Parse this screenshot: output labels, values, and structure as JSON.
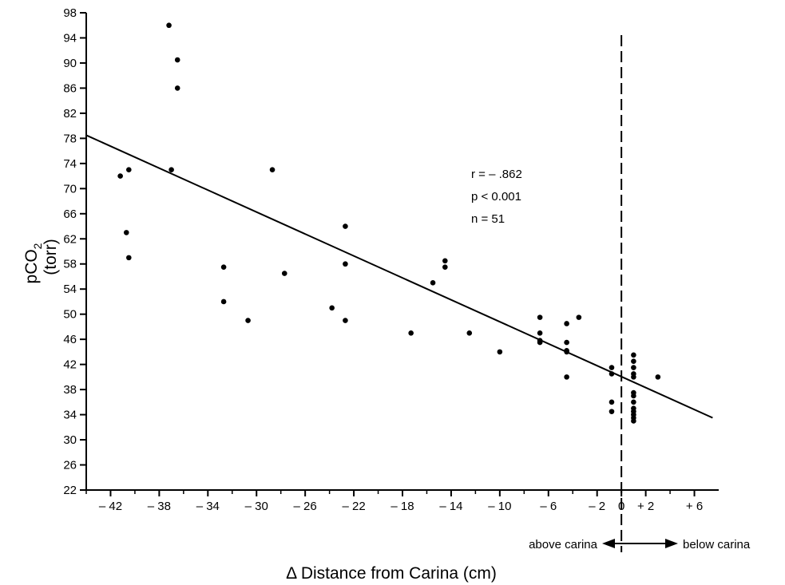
{
  "chart_data": {
    "type": "scatter",
    "xlabel": "Δ Distance from Carina (cm)",
    "ylabel_main": "pCO",
    "ylabel_sub": "2",
    "ylabel_unit": "(torr)",
    "xlim": [
      -44,
      8
    ],
    "ylim": [
      22,
      98
    ],
    "xticks": [
      -42,
      -38,
      -34,
      -30,
      -26,
      -22,
      -18,
      -14,
      -10,
      -6,
      -2,
      0,
      2,
      6
    ],
    "xtick_labels": [
      "– 42",
      "– 38",
      "– 34",
      "– 30",
      "– 26",
      "– 22",
      "– 18",
      "– 14",
      "– 10",
      "– 6",
      "– 2",
      "0",
      "+ 2",
      "+ 6"
    ],
    "yticks": [
      22,
      26,
      30,
      34,
      38,
      42,
      46,
      50,
      54,
      58,
      62,
      66,
      70,
      74,
      78,
      82,
      86,
      90,
      94,
      98
    ],
    "stats": [
      "r = – .862",
      "p < 0.001",
      "n = 51"
    ],
    "carina_line_x": 0,
    "above_label": "above carina",
    "below_label": "below carina",
    "regression": {
      "x": [
        -44,
        7.5
      ],
      "y": [
        78.5,
        33.5
      ]
    },
    "points": [
      {
        "x": -41.2,
        "y": 72.0
      },
      {
        "x": -40.5,
        "y": 73.0
      },
      {
        "x": -40.7,
        "y": 63.0
      },
      {
        "x": -40.5,
        "y": 59.0
      },
      {
        "x": -37.2,
        "y": 96.0
      },
      {
        "x": -36.5,
        "y": 90.5
      },
      {
        "x": -36.5,
        "y": 86.0
      },
      {
        "x": -37.0,
        "y": 73.0
      },
      {
        "x": -32.7,
        "y": 57.5
      },
      {
        "x": -32.7,
        "y": 52.0
      },
      {
        "x": -30.7,
        "y": 49.0
      },
      {
        "x": -28.7,
        "y": 73.0
      },
      {
        "x": -27.7,
        "y": 56.5
      },
      {
        "x": -23.8,
        "y": 51.0
      },
      {
        "x": -22.7,
        "y": 64.0
      },
      {
        "x": -22.7,
        "y": 58.0
      },
      {
        "x": -22.7,
        "y": 49.0
      },
      {
        "x": -17.3,
        "y": 47.0
      },
      {
        "x": -15.5,
        "y": 55.0
      },
      {
        "x": -14.5,
        "y": 58.5
      },
      {
        "x": -14.5,
        "y": 57.5
      },
      {
        "x": -12.5,
        "y": 47.0
      },
      {
        "x": -10.0,
        "y": 44.0
      },
      {
        "x": -6.7,
        "y": 49.5
      },
      {
        "x": -6.7,
        "y": 47.0
      },
      {
        "x": -6.7,
        "y": 45.5
      },
      {
        "x": -4.5,
        "y": 48.5
      },
      {
        "x": -4.5,
        "y": 45.5
      },
      {
        "x": -4.5,
        "y": 44.0
      },
      {
        "x": -4.5,
        "y": 40.0
      },
      {
        "x": -3.5,
        "y": 49.5
      },
      {
        "x": -0.8,
        "y": 41.5
      },
      {
        "x": -0.8,
        "y": 40.5
      },
      {
        "x": -0.8,
        "y": 36.0
      },
      {
        "x": -0.8,
        "y": 34.5
      },
      {
        "x": 1.0,
        "y": 43.5
      },
      {
        "x": 1.0,
        "y": 42.5
      },
      {
        "x": 1.0,
        "y": 41.5
      },
      {
        "x": 1.0,
        "y": 40.5
      },
      {
        "x": 1.0,
        "y": 40.0
      },
      {
        "x": 1.0,
        "y": 37.5
      },
      {
        "x": 1.0,
        "y": 37.0
      },
      {
        "x": 1.0,
        "y": 36.0
      },
      {
        "x": 1.0,
        "y": 35.0
      },
      {
        "x": 1.0,
        "y": 34.5
      },
      {
        "x": 1.0,
        "y": 34.0
      },
      {
        "x": 1.0,
        "y": 33.5
      },
      {
        "x": 1.0,
        "y": 33.0
      },
      {
        "x": 3.0,
        "y": 40.0
      },
      {
        "x": -4.5,
        "y": 44.2
      },
      {
        "x": -6.7,
        "y": 45.8
      }
    ],
    "grid": false,
    "colors": {
      "ink": "#000000",
      "background": "#ffffff"
    }
  }
}
